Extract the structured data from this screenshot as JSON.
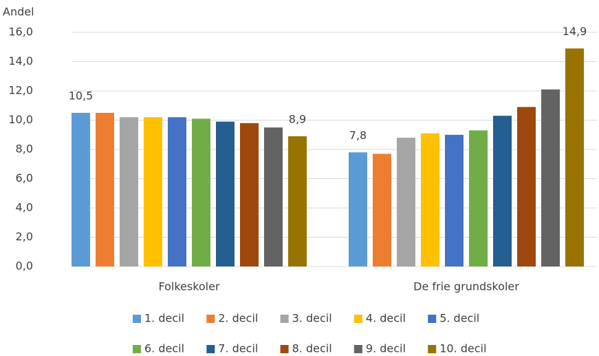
{
  "chart_data": {
    "type": "bar",
    "y_label": "Andel",
    "categories": [
      "Folkeskoler",
      "De frie grundskoler"
    ],
    "series": [
      {
        "name": "1. decil",
        "color": "#5b9bd5",
        "values": [
          10.5,
          7.8
        ],
        "value_labels": [
          "10,5",
          "7,8"
        ]
      },
      {
        "name": "2. decil",
        "color": "#ed7d31",
        "values": [
          10.5,
          7.7
        ]
      },
      {
        "name": "3. decil",
        "color": "#a5a5a5",
        "values": [
          10.2,
          8.8
        ]
      },
      {
        "name": "4. decil",
        "color": "#ffc000",
        "values": [
          10.2,
          9.1
        ]
      },
      {
        "name": "5. decil",
        "color": "#4472c4",
        "values": [
          10.2,
          9.0
        ]
      },
      {
        "name": "6. decil",
        "color": "#70ad47",
        "values": [
          10.1,
          9.3
        ]
      },
      {
        "name": "7. decil",
        "color": "#255e91",
        "values": [
          9.9,
          10.3
        ]
      },
      {
        "name": "8. decil",
        "color": "#9e480e",
        "values": [
          9.8,
          10.9
        ]
      },
      {
        "name": "9. decil",
        "color": "#636363",
        "values": [
          9.5,
          12.1
        ]
      },
      {
        "name": "10. decil",
        "color": "#997300",
        "values": [
          8.9,
          14.9
        ],
        "value_labels": [
          "8,9",
          "14,9"
        ]
      }
    ],
    "ylim": [
      0,
      16
    ],
    "yticks": [
      {
        "value": 0,
        "label": "0,0"
      },
      {
        "value": 2,
        "label": "2,0"
      },
      {
        "value": 4,
        "label": "4,0"
      },
      {
        "value": 6,
        "label": "6,0"
      },
      {
        "value": 8,
        "label": "8,0"
      },
      {
        "value": 10,
        "label": "10,0"
      },
      {
        "value": 12,
        "label": "12,0"
      },
      {
        "value": 14,
        "label": "14,0"
      },
      {
        "value": 16,
        "label": "16,0"
      }
    ],
    "grid": true,
    "legend": "bottom"
  }
}
